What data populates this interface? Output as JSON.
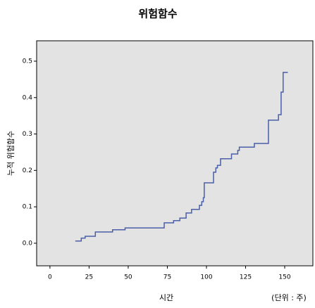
{
  "chart_data": {
    "type": "step",
    "title": "위험함수",
    "x_label": "시간",
    "x_unit": "(단위 : 주)",
    "y_label": "누적 위험함수",
    "color": "#4a5fa8",
    "x": [
      16.2,
      20,
      22.5,
      29,
      40,
      48,
      73,
      79,
      83,
      87,
      90.5,
      95.5,
      97,
      98,
      98.6,
      104.5,
      106,
      107,
      109,
      116,
      120,
      121,
      130.6,
      139.6,
      146,
      147.7,
      149,
      152
    ],
    "values": [
      0.006,
      0.014,
      0.019,
      0.031,
      0.037,
      0.042,
      0.056,
      0.062,
      0.069,
      0.083,
      0.093,
      0.104,
      0.114,
      0.125,
      0.166,
      0.195,
      0.207,
      0.214,
      0.232,
      0.245,
      0.255,
      0.264,
      0.274,
      0.338,
      0.353,
      0.415,
      0.469,
      0.469
    ],
    "xlim": [
      -8.5,
      168
    ],
    "xticks": [
      0,
      25,
      50,
      75,
      100,
      125,
      150
    ],
    "ylim": [
      -0.062,
      0.556
    ],
    "yticks": [
      {
        "value": 0,
        "label": "0.0"
      },
      0.1,
      0.2,
      0.3,
      0.4,
      0.5
    ]
  }
}
